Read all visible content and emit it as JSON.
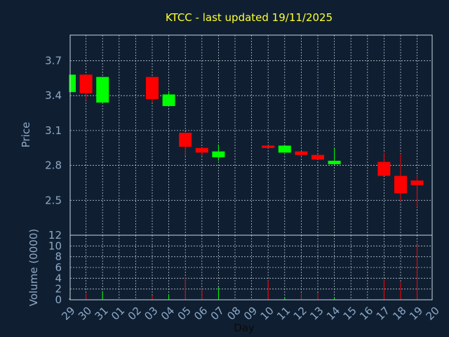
{
  "chart_data": {
    "type": "candlestick",
    "title": "KTCC - last updated 19/11/2025",
    "xlabel": "Day",
    "ylabel": "Price",
    "volume_label": "Volume (0000)",
    "up_color": "#00ff00",
    "down_color": "#ff0000",
    "background": "#0f1f31",
    "grid": true,
    "x_ticks": [
      "29",
      "30",
      "31",
      "01",
      "02",
      "03",
      "04",
      "05",
      "06",
      "07",
      "08",
      "09",
      "10",
      "11",
      "12",
      "13",
      "14",
      "15",
      "16",
      "17",
      "18",
      "19",
      "20"
    ],
    "price_ticks": [
      "3.7",
      "3.4",
      "3.1",
      "2.8",
      "2.5"
    ],
    "price_tick_values": [
      3.7,
      3.4,
      3.1,
      2.8,
      2.5
    ],
    "price_range": [
      2.2,
      3.92
    ],
    "volume_ticks": [
      "12",
      "10",
      "8",
      "6",
      "4",
      "2",
      "0"
    ],
    "volume_tick_values": [
      12,
      10,
      8,
      6,
      4,
      2,
      0
    ],
    "volume_range": [
      0,
      12
    ],
    "candles": [
      {
        "day": "29",
        "open": 3.43,
        "high": 3.58,
        "low": 3.43,
        "close": 3.58,
        "volume": 0.3
      },
      {
        "day": "30",
        "open": 3.58,
        "high": 3.58,
        "low": 3.36,
        "close": 3.42,
        "volume": 1.2
      },
      {
        "day": "31",
        "open": 3.34,
        "high": 3.56,
        "low": 3.34,
        "close": 3.56,
        "volume": 1.6
      },
      {
        "day": "03",
        "open": 3.56,
        "high": 3.56,
        "low": 3.34,
        "close": 3.37,
        "volume": 0.8
      },
      {
        "day": "04",
        "open": 3.31,
        "high": 3.44,
        "low": 3.31,
        "close": 3.41,
        "volume": 1.0
      },
      {
        "day": "05",
        "open": 3.08,
        "high": 3.08,
        "low": 2.88,
        "close": 2.96,
        "volume": 4.2
      },
      {
        "day": "06",
        "open": 2.95,
        "high": 2.95,
        "low": 2.88,
        "close": 2.91,
        "volume": 2.0
      },
      {
        "day": "07",
        "open": 2.87,
        "high": 2.98,
        "low": 2.84,
        "close": 2.92,
        "volume": 2.4
      },
      {
        "day": "10",
        "open": 2.97,
        "high": 2.97,
        "low": 2.95,
        "close": 2.95,
        "volume": 3.6
      },
      {
        "day": "11",
        "open": 2.91,
        "high": 2.97,
        "low": 2.91,
        "close": 2.97,
        "volume": 0.4
      },
      {
        "day": "12",
        "open": 2.92,
        "high": 2.92,
        "low": 2.88,
        "close": 2.89,
        "volume": 1.2
      },
      {
        "day": "13",
        "open": 2.89,
        "high": 2.89,
        "low": 2.85,
        "close": 2.85,
        "volume": 1.3
      },
      {
        "day": "14",
        "open": 2.81,
        "high": 2.95,
        "low": 2.81,
        "close": 2.84,
        "volume": 0.4
      },
      {
        "day": "17",
        "open": 2.83,
        "high": 2.91,
        "low": 2.71,
        "close": 2.71,
        "volume": 3.8
      },
      {
        "day": "18",
        "open": 2.71,
        "high": 2.9,
        "low": 2.49,
        "close": 2.56,
        "volume": 3.3
      },
      {
        "day": "19",
        "open": 2.67,
        "high": 2.72,
        "low": 2.44,
        "close": 2.63,
        "volume": 10.3
      }
    ]
  }
}
